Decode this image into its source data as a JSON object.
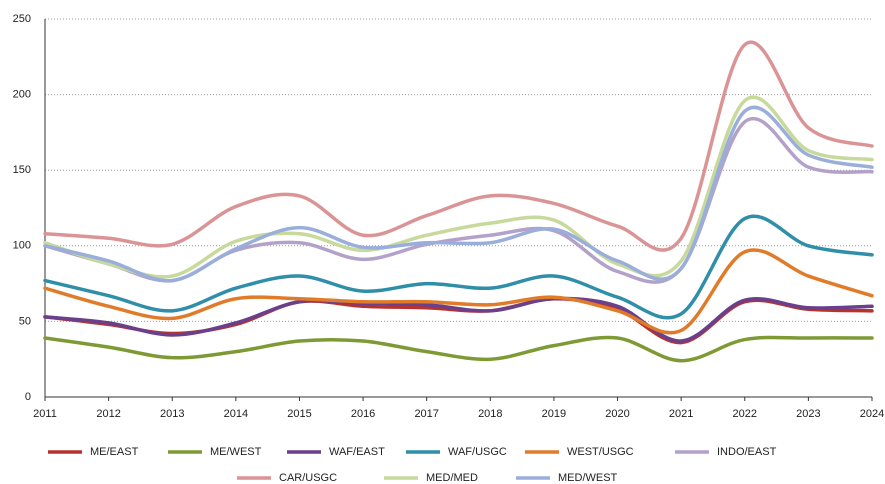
{
  "chart_data": {
    "type": "line",
    "x": [
      2011,
      2012,
      2013,
      2014,
      2015,
      2016,
      2017,
      2018,
      2019,
      2020,
      2021,
      2022,
      2023,
      2024
    ],
    "xlim": [
      2011,
      2024
    ],
    "xticks": [
      2011,
      2012,
      2013,
      2014,
      2015,
      2016,
      2017,
      2018,
      2019,
      2020,
      2021,
      2022,
      2023,
      2024
    ],
    "ylim": [
      0,
      250
    ],
    "yticks": [
      0,
      50,
      100,
      150,
      200,
      250
    ],
    "grid": true,
    "legend": "bottom",
    "series": [
      {
        "name": "ME/EAST",
        "color": "#b5322f",
        "values": [
          53,
          48,
          42,
          48,
          63,
          60,
          59,
          57,
          65,
          58,
          36,
          63,
          58,
          57
        ]
      },
      {
        "name": "ME/WEST",
        "color": "#7f9a34",
        "values": [
          39,
          33,
          26,
          30,
          37,
          37,
          30,
          25,
          34,
          39,
          24,
          38,
          39,
          39
        ]
      },
      {
        "name": "WAF/EAST",
        "color": "#6a3f8c",
        "values": [
          53,
          49,
          41,
          49,
          63,
          62,
          61,
          57,
          65,
          60,
          37,
          64,
          59,
          60
        ]
      },
      {
        "name": "WAF/USGC",
        "color": "#2f8ea8",
        "values": [
          77,
          67,
          57,
          72,
          80,
          70,
          75,
          72,
          80,
          66,
          55,
          118,
          100,
          94
        ]
      },
      {
        "name": "WEST/USGC",
        "color": "#e07b2a",
        "values": [
          72,
          60,
          52,
          65,
          65,
          63,
          63,
          61,
          66,
          57,
          44,
          96,
          80,
          67
        ]
      },
      {
        "name": "INDO/EAST",
        "color": "#b3a1c9",
        "values": [
          100,
          88,
          77,
          97,
          102,
          91,
          101,
          107,
          110,
          83,
          85,
          182,
          152,
          149
        ]
      },
      {
        "name": "CAR/USGC",
        "color": "#db9495",
        "values": [
          108,
          105,
          101,
          126,
          133,
          107,
          120,
          133,
          128,
          113,
          105,
          233,
          178,
          166
        ]
      },
      {
        "name": "MED/MED",
        "color": "#c7d99b",
        "values": [
          102,
          88,
          80,
          103,
          108,
          97,
          107,
          115,
          117,
          88,
          90,
          196,
          163,
          157
        ]
      },
      {
        "name": "MED/WEST",
        "color": "#9aaedb",
        "values": [
          100,
          90,
          77,
          98,
          112,
          99,
          102,
          102,
          111,
          90,
          85,
          189,
          160,
          152
        ]
      }
    ]
  }
}
